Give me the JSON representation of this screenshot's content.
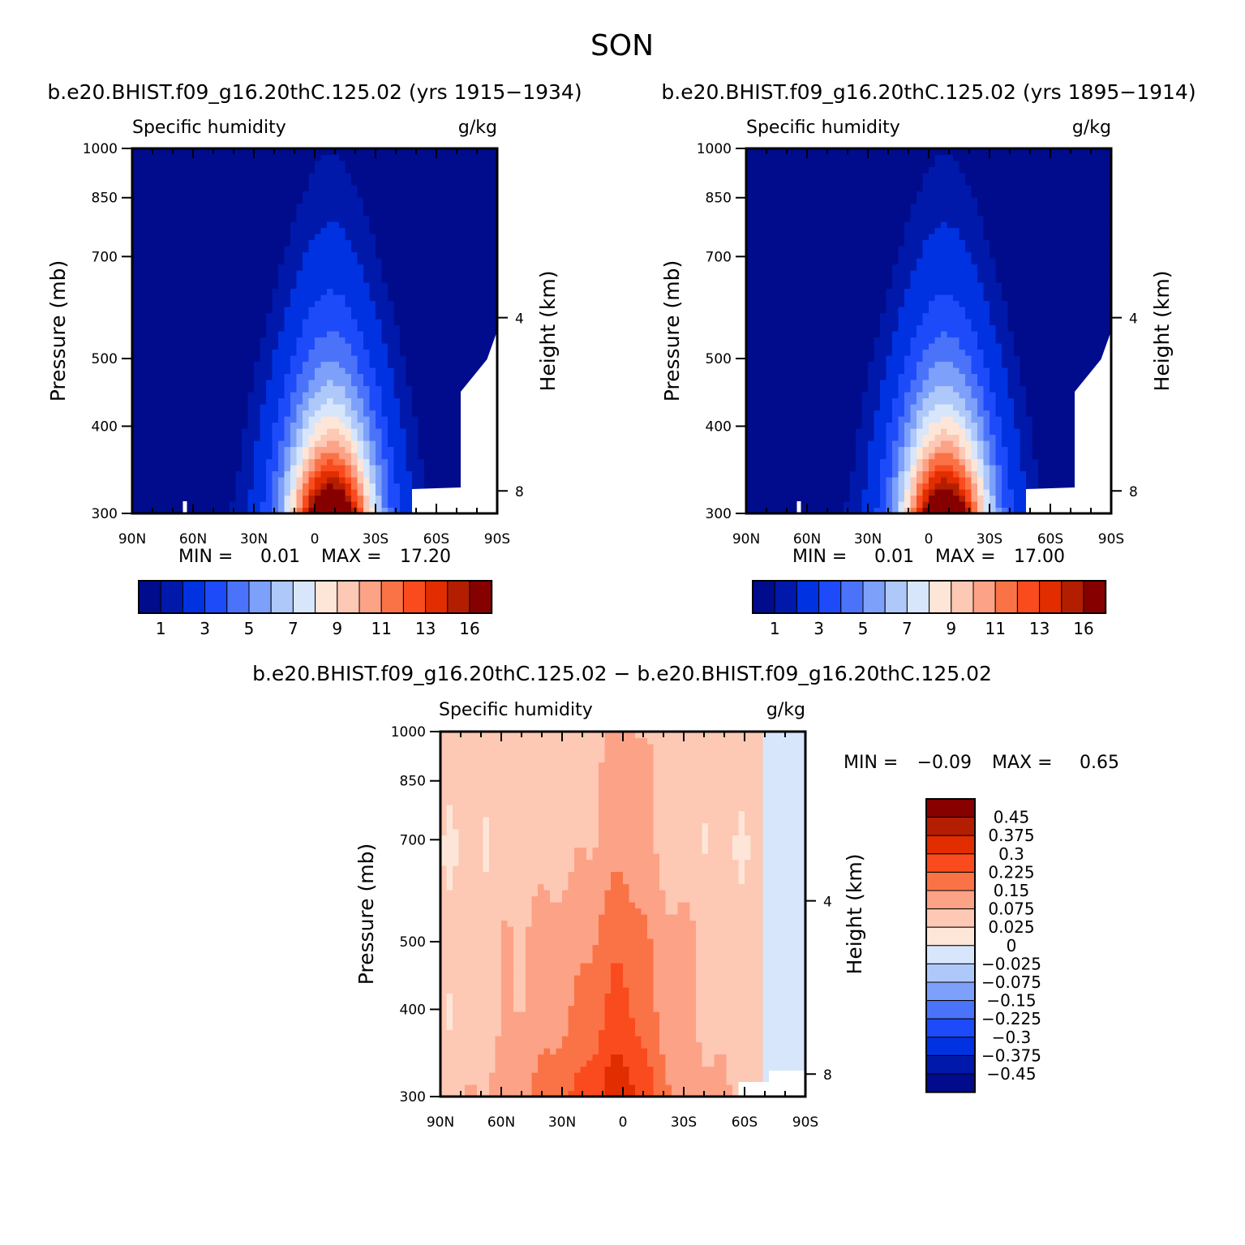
{
  "season": "SON",
  "colors": {
    "humidity_levels": [
      "#000c8c",
      "#0019aa",
      "#0032e1",
      "#1e4bfa",
      "#4b73fa",
      "#7da0fa",
      "#afc8fa",
      "#d7e6fa",
      "#fde6d7",
      "#fdc8b4",
      "#fca287",
      "#fa7346",
      "#fa4b1e",
      "#e12d00",
      "#b41e00",
      "#870000"
    ],
    "diff_levels": [
      "#000c8c",
      "#0019aa",
      "#0032e1",
      "#1e4bfa",
      "#4b73fa",
      "#7da0fa",
      "#afc8fa",
      "#d7e6fa",
      "#fde6d7",
      "#fdc8b4",
      "#fca287",
      "#fa7346",
      "#fa4b1e",
      "#e12d00",
      "#b41e00",
      "#870000"
    ]
  },
  "chart_data": [
    {
      "type": "heatmap",
      "panel": "top-left",
      "title": "b.e20.BHIST.f09_g16.20thC.125.02 (yrs 1915−1934)",
      "left_label": "Specific humidity",
      "right_label": "g/kg",
      "ylabel": "Pressure (mb)",
      "ylabel_right": "Height (km)",
      "xticks": [
        "90N",
        "60N",
        "30N",
        "0",
        "30S",
        "60S",
        "90S"
      ],
      "xlim": [
        90,
        -90
      ],
      "yticks": [
        "300",
        "400",
        "500",
        "700",
        "850",
        "1000"
      ],
      "ylim": [
        1000,
        300
      ],
      "yscale": "log",
      "height_ticks": [
        "8",
        "4"
      ],
      "minmax": {
        "min_label": "MIN =",
        "min": "0.01",
        "max_label": "MAX =",
        "max": "17.20"
      },
      "levels": [
        0.5,
        1,
        2,
        3,
        4,
        5,
        6,
        7,
        8,
        9,
        10,
        11,
        12,
        13,
        14,
        16
      ],
      "colorbar_labels": [
        "1",
        "3",
        "5",
        "7",
        "9",
        "11",
        "13",
        "16"
      ],
      "max_value": 17.2,
      "peak_latitude": -8
    },
    {
      "type": "heatmap",
      "panel": "top-right",
      "title": "b.e20.BHIST.f09_g16.20thC.125.02 (yrs 1895−1914)",
      "left_label": "Specific humidity",
      "right_label": "g/kg",
      "ylabel": "Pressure (mb)",
      "ylabel_right": "Height (km)",
      "xticks": [
        "90N",
        "60N",
        "30N",
        "0",
        "30S",
        "60S",
        "90S"
      ],
      "xlim": [
        90,
        -90
      ],
      "yticks": [
        "300",
        "400",
        "500",
        "700",
        "850",
        "1000"
      ],
      "ylim": [
        1000,
        300
      ],
      "yscale": "log",
      "height_ticks": [
        "8",
        "4"
      ],
      "minmax": {
        "min_label": "MIN =",
        "min": "0.01",
        "max_label": "MAX =",
        "max": "17.00"
      },
      "levels": [
        0.5,
        1,
        2,
        3,
        4,
        5,
        6,
        7,
        8,
        9,
        10,
        11,
        12,
        13,
        14,
        16
      ],
      "colorbar_labels": [
        "1",
        "3",
        "5",
        "7",
        "9",
        "11",
        "13",
        "16"
      ],
      "max_value": 17.0,
      "peak_latitude": -8
    },
    {
      "type": "heatmap",
      "panel": "bottom",
      "title": "b.e20.BHIST.f09_g16.20thC.125.02 − b.e20.BHIST.f09_g16.20thC.125.02",
      "left_label": "Specific humidity",
      "right_label": "g/kg",
      "ylabel": "Pressure (mb)",
      "ylabel_right": "Height (km)",
      "xticks": [
        "90N",
        "60N",
        "30N",
        "0",
        "30S",
        "60S",
        "90S"
      ],
      "xlim": [
        90,
        -90
      ],
      "yticks": [
        "300",
        "400",
        "500",
        "700",
        "850",
        "1000"
      ],
      "ylim": [
        1000,
        300
      ],
      "yscale": "log",
      "height_ticks": [
        "8",
        "4"
      ],
      "minmax": {
        "min_label": "MIN =",
        "min": "−0.09",
        "max_label": "MAX =",
        "max": "0.65"
      },
      "colorbar_labels": [
        "0.45",
        "0.375",
        "0.3",
        "0.225",
        "0.15",
        "0.075",
        "0.025",
        "0",
        "−0.025",
        "−0.075",
        "−0.15",
        "−0.225",
        "−0.3",
        "−0.375",
        "−0.45"
      ]
    }
  ]
}
